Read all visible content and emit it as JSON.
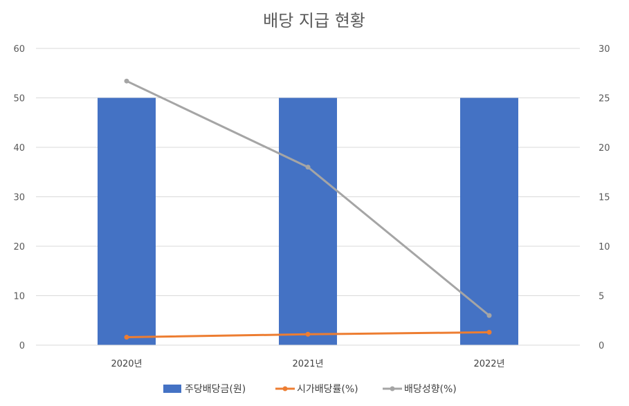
{
  "chart_data": {
    "type": "bar",
    "title": "배당 지급 현황",
    "categories": [
      "2020년",
      "2021년",
      "2022년"
    ],
    "series": [
      {
        "name": "주당배당금(원)",
        "kind": "bar",
        "axis": "left",
        "color": "#4472C4",
        "values": [
          50,
          50,
          50
        ]
      },
      {
        "name": "시가배당률(%)",
        "kind": "line",
        "axis": "right",
        "color": "#ED7D31",
        "values": [
          0.8,
          1.1,
          1.3
        ]
      },
      {
        "name": "배당성향(%)",
        "kind": "line",
        "axis": "right",
        "color": "#A5A5A5",
        "values": [
          26.7,
          18.0,
          3.0
        ]
      }
    ],
    "ylim_left": [
      0,
      60
    ],
    "yticks_left": [
      "0",
      "10",
      "20",
      "30",
      "40",
      "50",
      "60"
    ],
    "ylim_right": [
      0,
      30
    ],
    "yticks_right": [
      "0",
      "5",
      "10",
      "15",
      "20",
      "25",
      "30"
    ],
    "grid": true,
    "legend_position": "bottom"
  }
}
